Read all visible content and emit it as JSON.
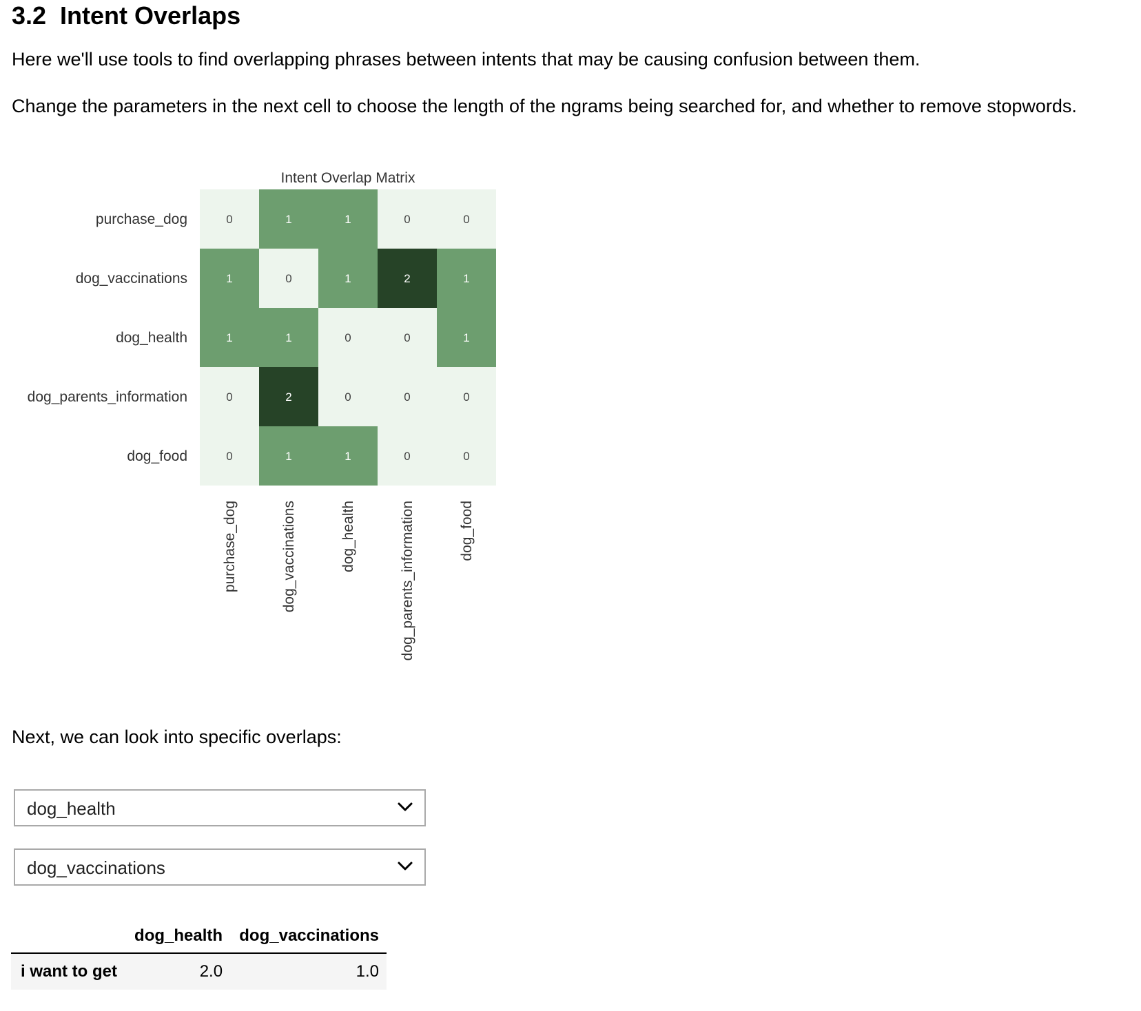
{
  "heading": {
    "number": "3.2",
    "title": "Intent Overlaps"
  },
  "paragraphs": {
    "intro": "Here we'll use tools to find overlapping phrases between intents that may be causing confusion between them.",
    "params": "Change the parameters in the next cell to choose the length of the ngrams being searched for, and whether to remove stopwords.",
    "next": "Next, we can look into specific overlaps:"
  },
  "chart_data": {
    "type": "heatmap",
    "title": "Intent Overlap Matrix",
    "row_labels": [
      "purchase_dog",
      "dog_vaccinations",
      "dog_health",
      "dog_parents_information",
      "dog_food"
    ],
    "col_labels": [
      "purchase_dog",
      "dog_vaccinations",
      "dog_health",
      "dog_parents_information",
      "dog_food"
    ],
    "values": [
      [
        0,
        1,
        1,
        0,
        0
      ],
      [
        1,
        0,
        1,
        2,
        1
      ],
      [
        1,
        1,
        0,
        0,
        1
      ],
      [
        0,
        2,
        0,
        0,
        0
      ],
      [
        0,
        1,
        1,
        0,
        0
      ]
    ],
    "colors": {
      "0": "#edf5ed",
      "1": "#6d9e6f",
      "2": "#264327"
    },
    "text_colors": {
      "0": "#444444",
      "1": "#ffffff",
      "2": "#ffffff"
    },
    "colorbar": false
  },
  "dropdowns": {
    "first": {
      "value": "dog_health",
      "icon": "chevron-down-icon"
    },
    "second": {
      "value": "dog_vaccinations",
      "icon": "chevron-down-icon"
    }
  },
  "table": {
    "columns": [
      "",
      "dog_health",
      "dog_vaccinations"
    ],
    "rows": [
      {
        "label": "i want to get",
        "values": [
          "2.0",
          "1.0"
        ]
      }
    ]
  }
}
